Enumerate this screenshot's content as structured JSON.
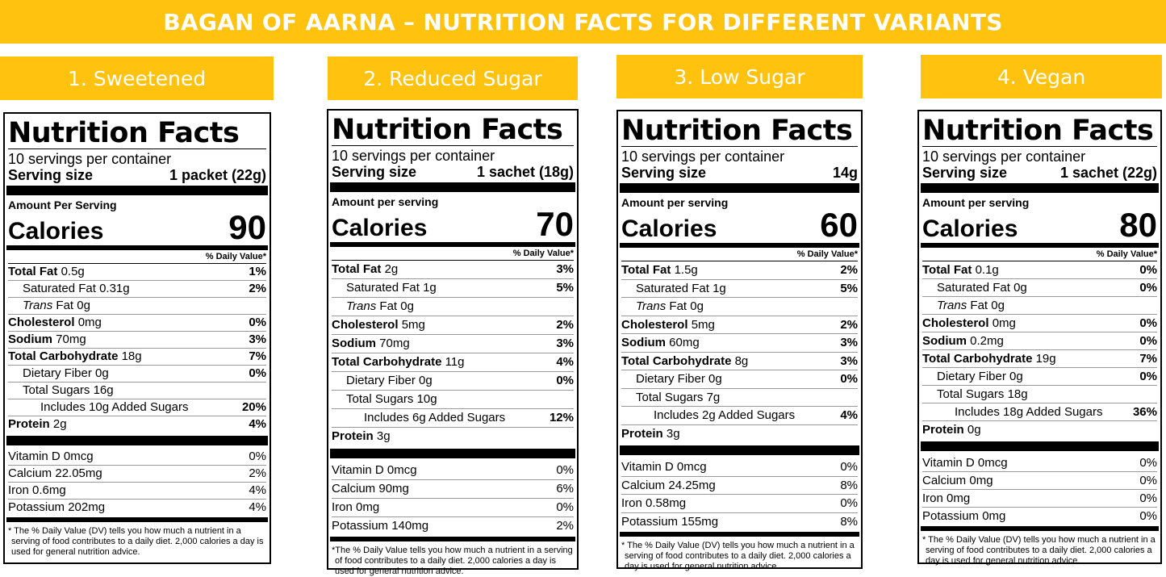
{
  "title": "BAGAN OF AARNA – NUTRITION FACTS FOR DIFFERENT VARIANTS",
  "common": {
    "nutrition_facts": "Nutrition Facts",
    "daily_value": "% Daily Value*",
    "total_fat": "Total Fat",
    "saturated_fat": "Saturated Fat",
    "trans": "Trans",
    "fat": " Fat ",
    "cholesterol": "Cholesterol",
    "sodium": "Sodium",
    "total_carb": "Total Carbohydrate",
    "fiber": "Dietary Fiber",
    "sugars": "Total Sugars",
    "protein": "Protein",
    "vitamin_d": "Vitamin D",
    "calcium": "Calcium",
    "iron": "Iron",
    "potassium": "Potassium"
  },
  "variants": [
    {
      "name": "1. Sweetened",
      "servings": "10 servings per container",
      "serving_size_label": "Serving size",
      "serving_size": "1 packet (22g)",
      "amount_label": "Amount Per Serving",
      "calories_label": "Calories",
      "calories": "90",
      "total_fat": "0.5g",
      "total_fat_dv": "1%",
      "sat_fat": "0.31g",
      "sat_fat_dv": "2%",
      "trans_fat": "0g",
      "cholesterol": "0mg",
      "cholesterol_dv": "0%",
      "sodium": "70mg",
      "sodium_dv": "3%",
      "carb": "18g",
      "carb_dv": "7%",
      "fiber": "0g",
      "fiber_dv": "0%",
      "sugars": "16g",
      "added_sugars": "Includes 10g Added Sugars",
      "added_sugars_dv": "20%",
      "protein": "2g",
      "protein_dv": "4%",
      "vitamin_d": "0mcg",
      "vitamin_d_dv": "0%",
      "calcium": "22.05mg",
      "calcium_dv": "2%",
      "iron": "0.6mg",
      "iron_dv": "4%",
      "potassium": "202mg",
      "potassium_dv": "4%",
      "footnote": "* The % Daily Value (DV) tells you how much a nutrient in a serving of food contributes to a daily diet. 2,000 calories a day is used for general nutrition advice."
    },
    {
      "name": "2. Reduced Sugar",
      "servings": "10 servings per container",
      "serving_size_label": "Serving size",
      "serving_size": "1 sachet (18g)",
      "amount_label": "Amount per serving",
      "calories_label": "Calories",
      "calories": "70",
      "total_fat": "2g",
      "total_fat_dv": "3%",
      "sat_fat": "1g",
      "sat_fat_dv": "5%",
      "trans_fat": "0g",
      "cholesterol": "5mg",
      "cholesterol_dv": "2%",
      "sodium": "70mg",
      "sodium_dv": "3%",
      "carb": "11g",
      "carb_dv": "4%",
      "fiber": "0g",
      "fiber_dv": "0%",
      "sugars": "10g",
      "added_sugars": "Includes 6g Added Sugars",
      "added_sugars_dv": "12%",
      "protein": "3g",
      "protein_dv": "",
      "vitamin_d": "0mcg",
      "vitamin_d_dv": "0%",
      "calcium": "90mg",
      "calcium_dv": "6%",
      "iron": "0mg",
      "iron_dv": "0%",
      "potassium": "140mg",
      "potassium_dv": "2%",
      "footnote": "*The % Daily Value tells you how much a nutrient in a serving of food contributes to a daily diet. 2,000 calories a day is used for general nutrition advice."
    },
    {
      "name": "3. Low Sugar",
      "servings": "10 servings per container",
      "serving_size_label": "Serving size",
      "serving_size": "14g",
      "amount_label": "Amount per serving",
      "calories_label": "Calories",
      "calories": "60",
      "total_fat": "1.5g",
      "total_fat_dv": "2%",
      "sat_fat": "1g",
      "sat_fat_dv": "5%",
      "trans_fat": "0g",
      "cholesterol": "5mg",
      "cholesterol_dv": "2%",
      "sodium": "60mg",
      "sodium_dv": "3%",
      "carb": "8g",
      "carb_dv": "3%",
      "fiber": "0g",
      "fiber_dv": "0%",
      "sugars": "7g",
      "added_sugars": "Includes 2g Added Sugars",
      "added_sugars_dv": "4%",
      "protein": "3g",
      "protein_dv": "",
      "vitamin_d": "0mcg",
      "vitamin_d_dv": "0%",
      "calcium": "24.25mg",
      "calcium_dv": "8%",
      "iron": "0.58mg",
      "iron_dv": "0%",
      "potassium": "155mg",
      "potassium_dv": "8%",
      "footnote": "* The % Daily Value (DV) tells you how much a nutrient in a serving of food contributes to a daily diet. 2,000 calories a day is used for general nutrition advice."
    },
    {
      "name": "4. Vegan",
      "servings": "10 servings per container",
      "serving_size_label": "Serving size",
      "serving_size": "1 sachet (22g)",
      "amount_label": "Amount per serving",
      "calories_label": "Calories",
      "calories": "80",
      "total_fat": "0.1g",
      "total_fat_dv": "0%",
      "sat_fat": "0g",
      "sat_fat_dv": "0%",
      "trans_fat": "0g",
      "cholesterol": "0mg",
      "cholesterol_dv": "0%",
      "sodium": "0.2mg",
      "sodium_dv": "0%",
      "carb": "19g",
      "carb_dv": "7%",
      "fiber": "0g",
      "fiber_dv": "0%",
      "sugars": "18g",
      "added_sugars": "Includes 18g Added Sugars",
      "added_sugars_dv": "36%",
      "protein": "0g",
      "protein_dv": "",
      "vitamin_d": "0mcg",
      "vitamin_d_dv": "0%",
      "calcium": "0mg",
      "calcium_dv": "0%",
      "iron": "0mg",
      "iron_dv": "0%",
      "potassium": "0mg",
      "potassium_dv": "0%",
      "footnote": "* The % Daily Value (DV) tells you how much a nutrient in a serving of food contributes to a daily diet. 2,000 calories a day is used for general nutrition advice."
    }
  ]
}
